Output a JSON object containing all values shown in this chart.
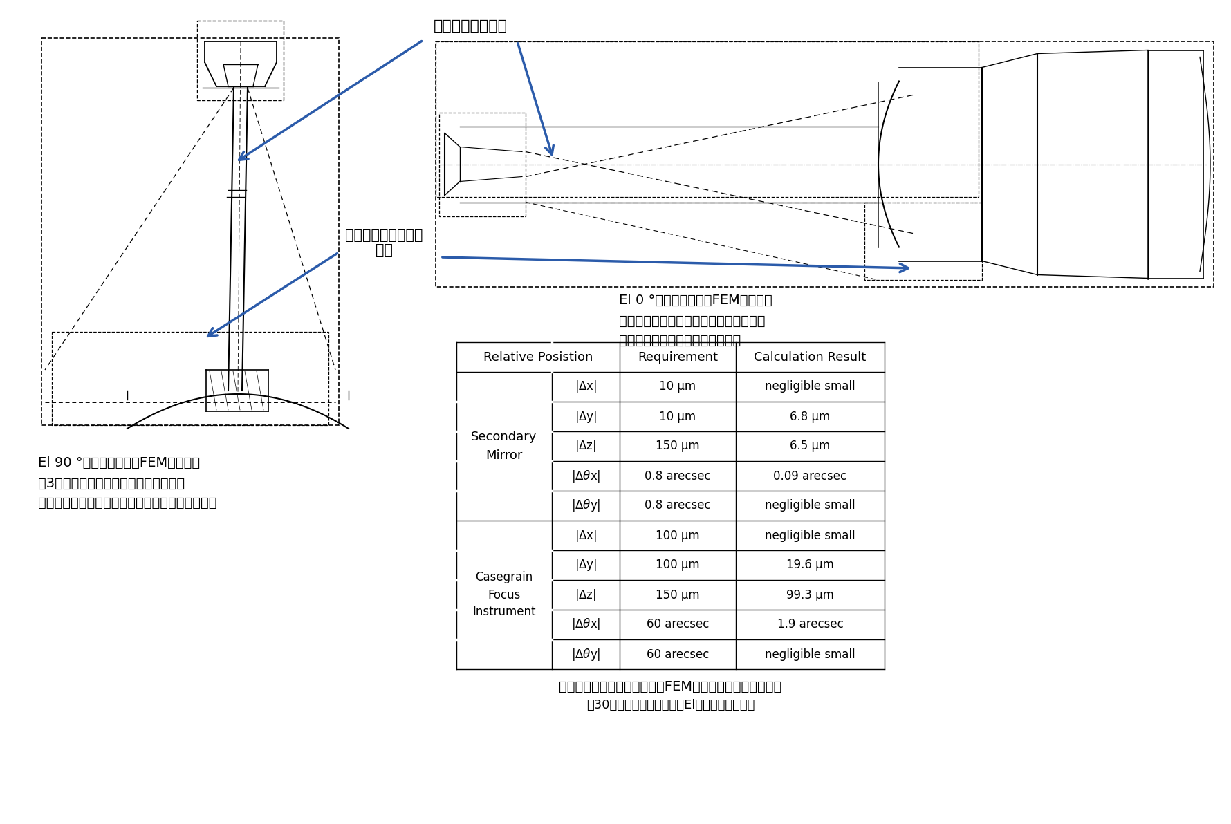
{
  "bg_color": "#ffffff",
  "label_main_axis": "変形後の主鏡光軸",
  "label_main_tilt_line1": "変形後の主鏡中心傾",
  "label_main_tilt_line2": "斜面",
  "label_el90_line1": "El 90 °における鏡筒のFEM解析結果",
  "label_el90_line2": "（3点の固定点の変位の影響で、主鏡が",
  "label_el90_line3": "わずかに傾くため副鏡の相対変位が発生する。）",
  "label_el0_line1": "El 0 °における鏡筒のFEM解析結果",
  "label_el0_line2": "（主鏡と副鏡の変位を出来るだけ等しく",
  "label_el0_line3": "すると共に、傾きも合わせる。）",
  "table_req": [
    "10 μm",
    "10 μm",
    "150 μm",
    "0.8 arecsec",
    "0.8 arecsec",
    "100 μm",
    "100 μm",
    "150 μm",
    "60 arecsec",
    "60 arecsec"
  ],
  "table_calc": [
    "negligible small",
    "6.8 μm",
    "6.5 μm",
    "0.09 arecsec",
    "negligible small",
    "negligible small",
    "19.6 μm",
    "99.3 μm",
    "1.9 arecsec",
    "negligible small"
  ],
  "caption1": "各方向の相対変位の目標値とFEM解析結果の最大相対変位",
  "caption2": "（30分の追尾駆動におけるEl角度最大変化時）",
  "arrow_color": "#2B5BAA"
}
